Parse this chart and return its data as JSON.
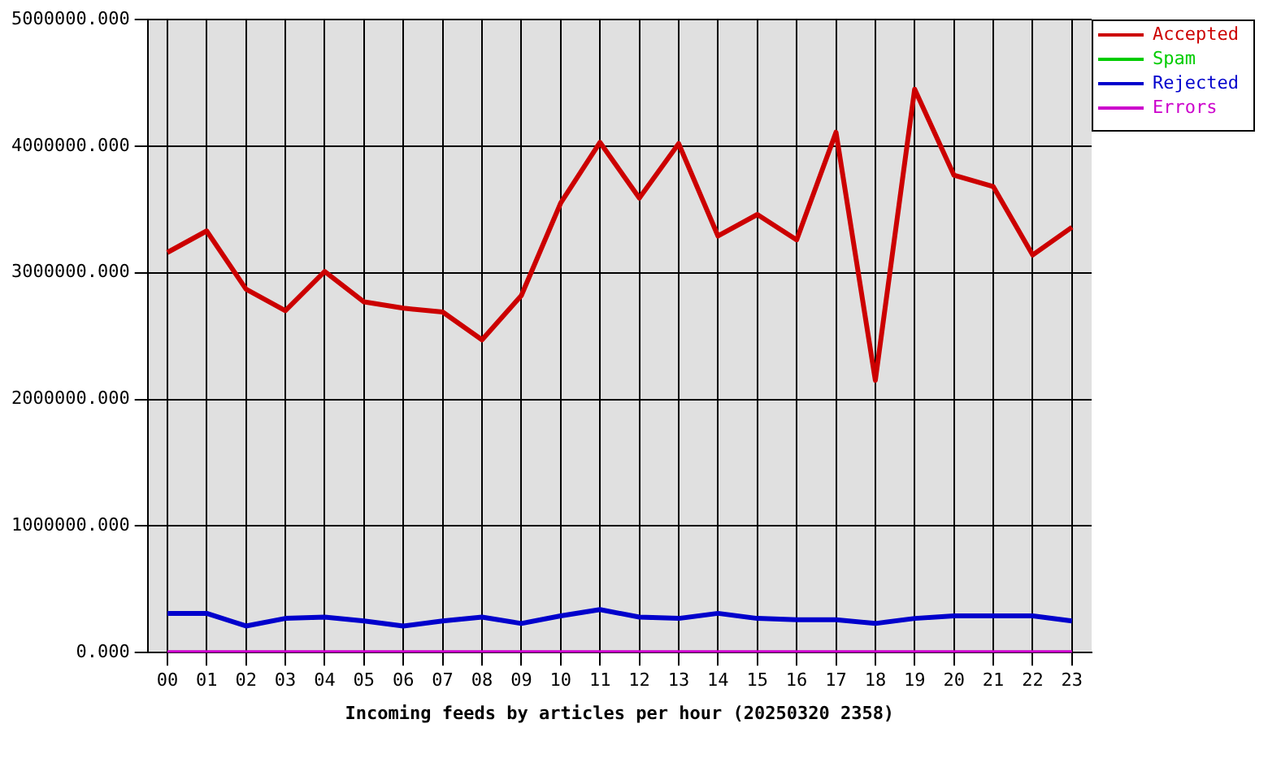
{
  "chart_data": {
    "type": "line",
    "xlabel": "Incoming feeds by articles per hour (20250320 2358)",
    "categories": [
      "00",
      "01",
      "02",
      "03",
      "04",
      "05",
      "06",
      "07",
      "08",
      "09",
      "10",
      "11",
      "12",
      "13",
      "14",
      "15",
      "16",
      "17",
      "18",
      "19",
      "20",
      "21",
      "22",
      "23"
    ],
    "series": [
      {
        "name": "Accepted",
        "color": "#cc0000",
        "values": [
          3160000,
          3330000,
          2870000,
          2700000,
          3010000,
          2770000,
          2720000,
          2690000,
          2470000,
          2820000,
          3550000,
          4030000,
          3590000,
          4020000,
          3290000,
          3460000,
          3260000,
          4110000,
          2150000,
          4450000,
          3770000,
          3680000,
          3140000,
          3360000
        ]
      },
      {
        "name": "Spam",
        "color": "#00cc00",
        "values": [
          null,
          null,
          null,
          null,
          null,
          null,
          null,
          null,
          null,
          null,
          null,
          null,
          null,
          null,
          null,
          null,
          null,
          null,
          null,
          null,
          null,
          null,
          null,
          null
        ]
      },
      {
        "name": "Rejected",
        "color": "#0000cc",
        "values": [
          310000,
          310000,
          210000,
          270000,
          280000,
          250000,
          210000,
          250000,
          280000,
          230000,
          290000,
          340000,
          280000,
          270000,
          310000,
          270000,
          260000,
          260000,
          230000,
          270000,
          290000,
          290000,
          290000,
          250000
        ]
      },
      {
        "name": "Errors",
        "color": "#cc00cc",
        "values": [
          0,
          0,
          0,
          0,
          0,
          0,
          0,
          0,
          0,
          0,
          0,
          0,
          0,
          0,
          0,
          0,
          0,
          0,
          0,
          0,
          0,
          0,
          0,
          0
        ]
      }
    ],
    "ylim": [
      0,
      5000000
    ],
    "yticks": [
      {
        "value": 0,
        "label": "0.000"
      },
      {
        "value": 1000000,
        "label": "1000000.000"
      },
      {
        "value": 2000000,
        "label": "2000000.000"
      },
      {
        "value": 3000000,
        "label": "3000000.000"
      },
      {
        "value": 4000000,
        "label": "4000000.000"
      },
      {
        "value": 5000000,
        "label": "5000000.000"
      }
    ],
    "grid": true,
    "legend": "top right",
    "marker": "none",
    "line_style": "solid"
  }
}
